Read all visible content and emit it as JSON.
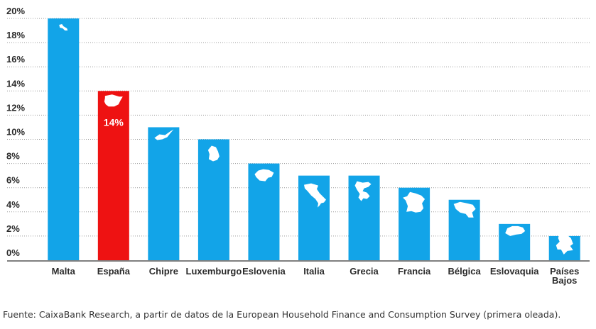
{
  "chart_data": {
    "type": "bar",
    "categories": [
      "Malta",
      "España",
      "Chipre",
      "Luxemburgo",
      "Eslovenia",
      "Italia",
      "Grecia",
      "Francia",
      "Bélgica",
      "Eslovaquia",
      "Países Bajos"
    ],
    "values": [
      20,
      14,
      11,
      10,
      8,
      7,
      7,
      6,
      5,
      3,
      2
    ],
    "data_labels": [
      "",
      "14%",
      "",
      "",
      "",
      "",
      "",
      "",
      "",
      "",
      ""
    ],
    "y_ticks": [
      "0%",
      "2%",
      "4%",
      "6%",
      "8%",
      "10%",
      "12%",
      "14%",
      "16%",
      "18%",
      "20%"
    ],
    "ylim": [
      0,
      20
    ],
    "title": "",
    "xlabel": "",
    "ylabel": "",
    "grid": true,
    "grid_style": "dotted",
    "legend": "none",
    "colors": {
      "bar": "#12a4e8",
      "highlight": "#ee1212",
      "grid": "#9a9a9a",
      "baseline": "#555555",
      "text": "#2b2b2b"
    },
    "highlight_index": 1,
    "bar_icons": [
      "malta-map-icon",
      "spain-map-icon",
      "cyprus-map-icon",
      "luxembourg-map-icon",
      "slovenia-map-icon",
      "italy-map-icon",
      "greece-map-icon",
      "france-map-icon",
      "belgium-map-icon",
      "slovakia-map-icon",
      "netherlands-map-icon"
    ]
  },
  "source": "Fuente: CaixaBank Research, a partir de datos de la European Household Finance and Consumption Survey (primera oleada)."
}
